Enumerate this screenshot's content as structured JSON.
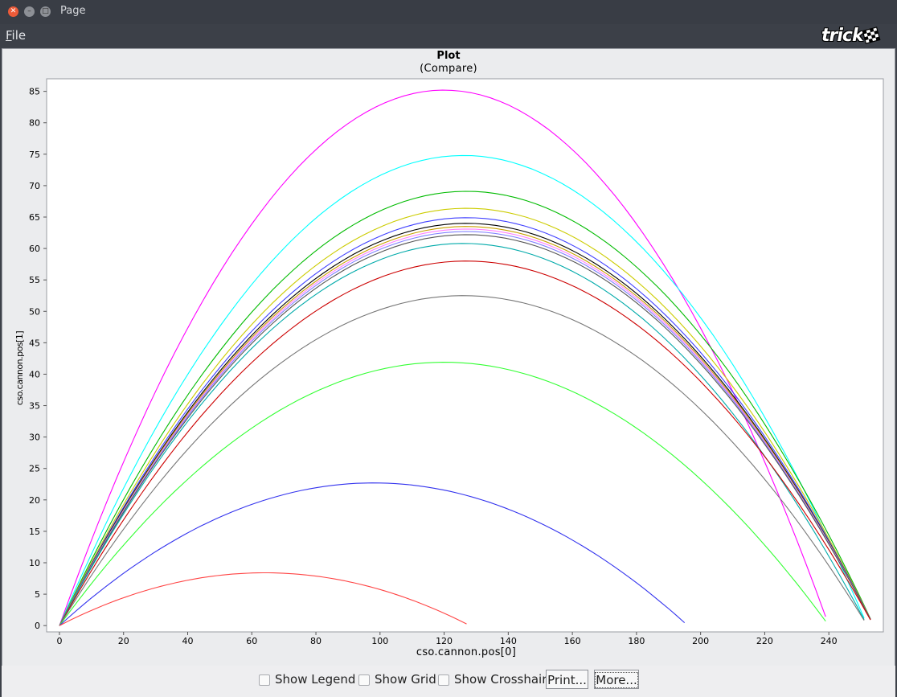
{
  "window": {
    "title": "Page"
  },
  "menu": {
    "file_accel": "F",
    "file_rest": "ile"
  },
  "logo": {
    "text": "trick"
  },
  "plot": {
    "title": "Plot",
    "subtitle": "(Compare)"
  },
  "controls": {
    "show_legend": "Show Legend",
    "show_grid": "Show Grid",
    "show_crosshair": "Show Crosshair",
    "print": "Print...",
    "more": "More..."
  },
  "chart_data": {
    "type": "line",
    "title": "Plot",
    "subtitle": "(Compare)",
    "xlabel": "cso.cannon.pos[0]",
    "ylabel": "cso.cannon.pos[1]",
    "xlim": [
      -4,
      257
    ],
    "ylim": [
      -1,
      87
    ],
    "xticks": [
      0,
      20,
      40,
      60,
      80,
      100,
      120,
      140,
      160,
      180,
      200,
      220,
      240
    ],
    "yticks": [
      0,
      5,
      10,
      15,
      20,
      25,
      30,
      35,
      40,
      45,
      50,
      55,
      60,
      65,
      70,
      75,
      80,
      85
    ],
    "grid": false,
    "legend": "none",
    "series": [
      {
        "color": "#ff00ff",
        "x": [
          0,
          60,
          120,
          180,
          239
        ],
        "y": [
          0,
          63.8,
          85.2,
          63.8,
          0
        ]
      },
      {
        "color": "#00ffff",
        "x": [
          0,
          63,
          126,
          189,
          251
        ],
        "y": [
          0,
          56.1,
          74.8,
          56.1,
          0
        ]
      },
      {
        "color": "#00bb00",
        "x": [
          0,
          63.5,
          127,
          190.5,
          253
        ],
        "y": [
          0,
          51.8,
          69.1,
          51.8,
          0
        ]
      },
      {
        "color": "#cccc00",
        "x": [
          0,
          63.5,
          127,
          190.5,
          253
        ],
        "y": [
          0,
          49.8,
          66.4,
          49.8,
          0
        ]
      },
      {
        "color": "#4040ff",
        "x": [
          0,
          63.5,
          127,
          190.5,
          253
        ],
        "y": [
          0,
          48.7,
          64.9,
          48.7,
          0
        ]
      },
      {
        "color": "#000000",
        "x": [
          0,
          63.5,
          127,
          190.5,
          253
        ],
        "y": [
          0,
          48.0,
          64.0,
          48.0,
          0
        ]
      },
      {
        "color": "#c8a000",
        "x": [
          0,
          63.5,
          127,
          190.5,
          253
        ],
        "y": [
          0,
          47.6,
          63.5,
          47.6,
          0
        ]
      },
      {
        "color": "#ff80ff",
        "x": [
          0,
          63.5,
          127,
          190.5,
          253
        ],
        "y": [
          0,
          47.3,
          63.1,
          47.3,
          0
        ]
      },
      {
        "color": "#8080ff",
        "x": [
          0,
          63.5,
          127,
          190.5,
          253
        ],
        "y": [
          0,
          47.0,
          62.7,
          47.0,
          0
        ]
      },
      {
        "color": "#555555",
        "x": [
          0,
          63.5,
          127,
          190.5,
          253
        ],
        "y": [
          0,
          46.6,
          62.2,
          46.6,
          0
        ]
      },
      {
        "color": "#00aaaa",
        "x": [
          0,
          63,
          126,
          189,
          251
        ],
        "y": [
          0,
          45.6,
          60.8,
          45.6,
          0
        ]
      },
      {
        "color": "#cc0000",
        "x": [
          0,
          63.5,
          127,
          190.5,
          253
        ],
        "y": [
          0,
          43.5,
          58.0,
          43.5,
          0
        ]
      },
      {
        "color": "#777777",
        "x": [
          0,
          63,
          126,
          189,
          251
        ],
        "y": [
          0,
          39.4,
          52.5,
          39.4,
          0
        ]
      },
      {
        "color": "#33ff33",
        "x": [
          0,
          60,
          120,
          180,
          239
        ],
        "y": [
          0,
          31.4,
          41.9,
          31.4,
          0
        ]
      },
      {
        "color": "#3333ee",
        "x": [
          0,
          49,
          98,
          147,
          195
        ],
        "y": [
          0,
          17.0,
          22.7,
          17.0,
          0
        ]
      },
      {
        "color": "#ff4444",
        "x": [
          0,
          32,
          64,
          96,
          127
        ],
        "y": [
          0,
          6.3,
          8.4,
          6.3,
          0
        ]
      }
    ]
  }
}
